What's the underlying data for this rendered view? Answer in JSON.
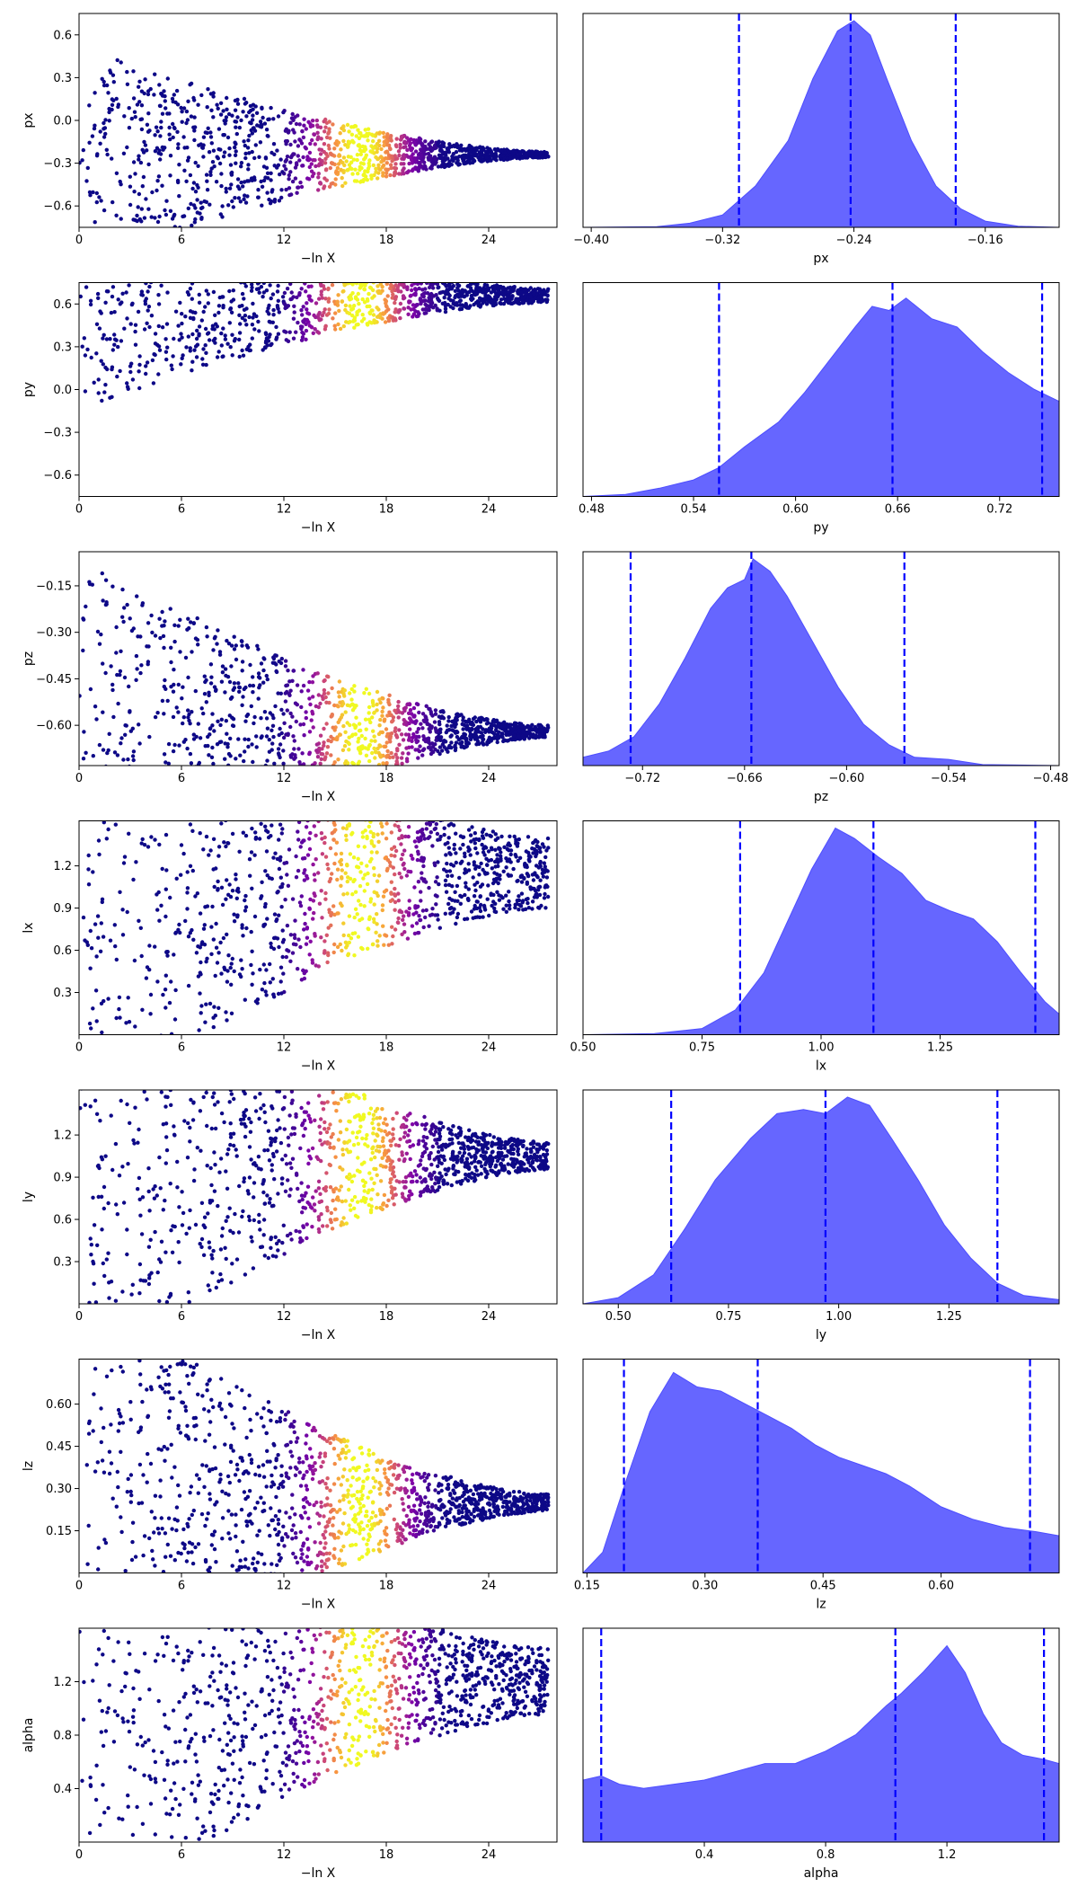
{
  "chart_data": {
    "type": "scatter",
    "description_free": true,
    "rows": [
      {
        "param": "px",
        "trace": {
          "xlabel": "−ln X",
          "ylabel": "px",
          "xlim": [
            0,
            28
          ],
          "ylim": [
            -0.75,
            0.75
          ],
          "xticks": [
            "0",
            "6",
            "12",
            "18",
            "24"
          ],
          "xtick_values": [
            0,
            6,
            12,
            18,
            24
          ],
          "yticks": [
            "0.6",
            "0.3",
            "0.0",
            "−0.3",
            "−0.6"
          ],
          "ytick_values": [
            0.6,
            0.3,
            0.0,
            -0.3,
            -0.6
          ],
          "center": -0.24,
          "initial_spread": 0.75,
          "final_spread": 0.02,
          "peak_x": 16.5
        },
        "posterior": {
          "xlabel": "px",
          "xlim": [
            -0.405,
            -0.115
          ],
          "xticks": [
            "−0.40",
            "−0.32",
            "−0.24",
            "−0.16"
          ],
          "xtick_values": [
            -0.4,
            -0.32,
            -0.24,
            -0.16
          ],
          "quantiles": [
            -0.31,
            -0.242,
            -0.178
          ],
          "density": [
            [
              -0.405,
              0
            ],
            [
              -0.36,
              0.003
            ],
            [
              -0.34,
              0.02
            ],
            [
              -0.32,
              0.06
            ],
            [
              -0.3,
              0.2
            ],
            [
              -0.28,
              0.42
            ],
            [
              -0.265,
              0.72
            ],
            [
              -0.25,
              0.95
            ],
            [
              -0.24,
              1.0
            ],
            [
              -0.23,
              0.93
            ],
            [
              -0.22,
              0.72
            ],
            [
              -0.205,
              0.42
            ],
            [
              -0.19,
              0.2
            ],
            [
              -0.175,
              0.09
            ],
            [
              -0.16,
              0.03
            ],
            [
              -0.14,
              0.005
            ],
            [
              -0.115,
              0
            ]
          ]
        }
      },
      {
        "param": "py",
        "trace": {
          "xlabel": "−ln X",
          "ylabel": "py",
          "xlim": [
            0,
            28
          ],
          "ylim": [
            -0.75,
            0.75
          ],
          "xticks": [
            "0",
            "6",
            "12",
            "18",
            "24"
          ],
          "xtick_values": [
            0,
            6,
            12,
            18,
            24
          ],
          "yticks": [
            "0.6",
            "0.3",
            "0.0",
            "−0.3",
            "−0.6"
          ],
          "ytick_values": [
            0.6,
            0.3,
            0.0,
            -0.3,
            -0.6
          ],
          "center": 0.66,
          "initial_spread": 0.75,
          "final_spread": 0.05,
          "peak_x": 16.5
        },
        "posterior": {
          "xlabel": "py",
          "xlim": [
            0.475,
            0.755
          ],
          "xticks": [
            "0.48",
            "0.54",
            "0.60",
            "0.66",
            "0.72"
          ],
          "xtick_values": [
            0.48,
            0.54,
            0.6,
            0.66,
            0.72
          ],
          "quantiles": [
            0.555,
            0.657,
            0.745
          ],
          "density": [
            [
              0.475,
              0
            ],
            [
              0.5,
              0.01
            ],
            [
              0.52,
              0.04
            ],
            [
              0.54,
              0.08
            ],
            [
              0.555,
              0.14
            ],
            [
              0.57,
              0.24
            ],
            [
              0.59,
              0.36
            ],
            [
              0.605,
              0.5
            ],
            [
              0.62,
              0.66
            ],
            [
              0.635,
              0.82
            ],
            [
              0.645,
              0.92
            ],
            [
              0.655,
              0.9
            ],
            [
              0.665,
              0.96
            ],
            [
              0.68,
              0.86
            ],
            [
              0.695,
              0.82
            ],
            [
              0.71,
              0.7
            ],
            [
              0.725,
              0.6
            ],
            [
              0.74,
              0.52
            ],
            [
              0.755,
              0.46
            ]
          ]
        }
      },
      {
        "param": "pz",
        "trace": {
          "xlabel": "−ln X",
          "ylabel": "pz",
          "xlim": [
            0,
            28
          ],
          "ylim": [
            -0.73,
            -0.04
          ],
          "xticks": [
            "0",
            "6",
            "12",
            "18",
            "24"
          ],
          "xtick_values": [
            0,
            6,
            12,
            18,
            24
          ],
          "yticks": [
            "−0.15",
            "−0.30",
            "−0.45",
            "−0.60"
          ],
          "ytick_values": [
            -0.15,
            -0.3,
            -0.45,
            -0.6
          ],
          "center": -0.62,
          "initial_spread": 0.55,
          "final_spread": 0.02,
          "peak_x": 16.5
        },
        "posterior": {
          "xlabel": "pz",
          "xlim": [
            -0.755,
            -0.475
          ],
          "xticks": [
            "−0.72",
            "−0.66",
            "−0.60",
            "−0.54",
            "−0.48"
          ],
          "xtick_values": [
            -0.72,
            -0.66,
            -0.6,
            -0.54,
            -0.48
          ],
          "quantiles": [
            -0.727,
            -0.656,
            -0.566
          ],
          "density": [
            [
              -0.755,
              0.04
            ],
            [
              -0.74,
              0.07
            ],
            [
              -0.725,
              0.14
            ],
            [
              -0.71,
              0.3
            ],
            [
              -0.695,
              0.52
            ],
            [
              -0.68,
              0.76
            ],
            [
              -0.67,
              0.86
            ],
            [
              -0.66,
              0.9
            ],
            [
              -0.655,
              1.0
            ],
            [
              -0.645,
              0.94
            ],
            [
              -0.635,
              0.82
            ],
            [
              -0.62,
              0.6
            ],
            [
              -0.605,
              0.38
            ],
            [
              -0.59,
              0.2
            ],
            [
              -0.575,
              0.1
            ],
            [
              -0.56,
              0.04
            ],
            [
              -0.54,
              0.03
            ],
            [
              -0.52,
              0.005
            ],
            [
              -0.475,
              0
            ]
          ]
        }
      },
      {
        "param": "lx",
        "trace": {
          "xlabel": "−ln X",
          "ylabel": "lx",
          "xlim": [
            0,
            28
          ],
          "ylim": [
            0.0,
            1.52
          ],
          "xticks": [
            "0",
            "6",
            "12",
            "18",
            "24"
          ],
          "xtick_values": [
            0,
            6,
            12,
            18,
            24
          ],
          "yticks": [
            "1.2",
            "0.9",
            "0.6",
            "0.3"
          ],
          "ytick_values": [
            1.2,
            0.9,
            0.6,
            0.3
          ],
          "center": 1.15,
          "initial_spread": 1.5,
          "final_spread": 0.25,
          "peak_x": 16.5
        },
        "posterior": {
          "xlabel": "lx",
          "xlim": [
            0.5,
            1.5
          ],
          "xticks": [
            "0.50",
            "0.75",
            "1.00",
            "1.25"
          ],
          "xtick_values": [
            0.5,
            0.75,
            1.0,
            1.25
          ],
          "quantiles": [
            0.83,
            1.11,
            1.45
          ],
          "density": [
            [
              0.5,
              0
            ],
            [
              0.65,
              0.005
            ],
            [
              0.75,
              0.03
            ],
            [
              0.82,
              0.12
            ],
            [
              0.88,
              0.3
            ],
            [
              0.93,
              0.55
            ],
            [
              0.98,
              0.8
            ],
            [
              1.03,
              1.0
            ],
            [
              1.07,
              0.95
            ],
            [
              1.12,
              0.86
            ],
            [
              1.17,
              0.78
            ],
            [
              1.22,
              0.65
            ],
            [
              1.27,
              0.6
            ],
            [
              1.32,
              0.56
            ],
            [
              1.37,
              0.45
            ],
            [
              1.42,
              0.3
            ],
            [
              1.47,
              0.16
            ],
            [
              1.5,
              0.1
            ]
          ]
        }
      },
      {
        "param": "ly",
        "trace": {
          "xlabel": "−ln X",
          "ylabel": "ly",
          "xlim": [
            0,
            28
          ],
          "ylim": [
            0.0,
            1.52
          ],
          "xticks": [
            "0",
            "6",
            "12",
            "18",
            "24"
          ],
          "xtick_values": [
            0,
            6,
            12,
            18,
            24
          ],
          "yticks": [
            "1.2",
            "0.9",
            "0.6",
            "0.3"
          ],
          "ytick_values": [
            1.2,
            0.9,
            0.6,
            0.3
          ],
          "center": 1.05,
          "initial_spread": 1.5,
          "final_spread": 0.1,
          "peak_x": 16.5
        },
        "posterior": {
          "xlabel": "ly",
          "xlim": [
            0.42,
            1.5
          ],
          "xticks": [
            "0.50",
            "0.75",
            "1.00",
            "1.25"
          ],
          "xtick_values": [
            0.5,
            0.75,
            1.0,
            1.25
          ],
          "quantiles": [
            0.62,
            0.97,
            1.36
          ],
          "density": [
            [
              0.42,
              0
            ],
            [
              0.5,
              0.03
            ],
            [
              0.58,
              0.14
            ],
            [
              0.65,
              0.36
            ],
            [
              0.72,
              0.6
            ],
            [
              0.8,
              0.8
            ],
            [
              0.86,
              0.92
            ],
            [
              0.92,
              0.94
            ],
            [
              0.97,
              0.92
            ],
            [
              1.02,
              1.0
            ],
            [
              1.07,
              0.96
            ],
            [
              1.12,
              0.8
            ],
            [
              1.18,
              0.6
            ],
            [
              1.24,
              0.38
            ],
            [
              1.3,
              0.22
            ],
            [
              1.36,
              0.1
            ],
            [
              1.42,
              0.04
            ],
            [
              1.5,
              0.02
            ]
          ]
        }
      },
      {
        "param": "lz",
        "trace": {
          "xlabel": "−ln X",
          "ylabel": "lz",
          "xlim": [
            0,
            28
          ],
          "ylim": [
            0.0,
            0.76
          ],
          "xticks": [
            "0",
            "6",
            "12",
            "18",
            "24"
          ],
          "xtick_values": [
            0,
            6,
            12,
            18,
            24
          ],
          "yticks": [
            "0.60",
            "0.45",
            "0.30",
            "0.15"
          ],
          "ytick_values": [
            0.6,
            0.45,
            0.3,
            0.15
          ],
          "center": 0.25,
          "initial_spread": 0.75,
          "final_spread": 0.03,
          "peak_x": 16.5
        },
        "posterior": {
          "xlabel": "lz",
          "xlim": [
            0.145,
            0.75
          ],
          "xticks": [
            "0.15",
            "0.30",
            "0.45",
            "0.60"
          ],
          "xtick_values": [
            0.15,
            0.3,
            0.45,
            0.6
          ],
          "quantiles": [
            0.197,
            0.367,
            0.713
          ],
          "density": [
            [
              0.145,
              0
            ],
            [
              0.17,
              0.1
            ],
            [
              0.2,
              0.45
            ],
            [
              0.23,
              0.78
            ],
            [
              0.26,
              0.97
            ],
            [
              0.29,
              0.9
            ],
            [
              0.32,
              0.88
            ],
            [
              0.35,
              0.82
            ],
            [
              0.38,
              0.76
            ],
            [
              0.41,
              0.7
            ],
            [
              0.44,
              0.62
            ],
            [
              0.47,
              0.56
            ],
            [
              0.5,
              0.52
            ],
            [
              0.53,
              0.48
            ],
            [
              0.56,
              0.42
            ],
            [
              0.6,
              0.32
            ],
            [
              0.64,
              0.26
            ],
            [
              0.68,
              0.22
            ],
            [
              0.72,
              0.2
            ],
            [
              0.75,
              0.18
            ]
          ]
        }
      },
      {
        "param": "alpha",
        "trace": {
          "xlabel": "−ln X",
          "ylabel": "alpha",
          "xlim": [
            0,
            28
          ],
          "ylim": [
            0.0,
            1.6
          ],
          "xticks": [
            "0",
            "6",
            "12",
            "18",
            "24"
          ],
          "xtick_values": [
            0,
            6,
            12,
            18,
            24
          ],
          "yticks": [
            "1.2",
            "0.8",
            "0.4"
          ],
          "ytick_values": [
            1.2,
            0.8,
            0.4
          ],
          "center": 1.2,
          "initial_spread": 1.6,
          "final_spread": 0.25,
          "peak_x": 16.5
        },
        "posterior": {
          "xlabel": "alpha",
          "xlim": [
            0.0,
            1.57
          ],
          "xticks": [
            "0.4",
            "0.8",
            "1.2"
          ],
          "xtick_values": [
            0.4,
            0.8,
            1.2
          ],
          "quantiles": [
            0.06,
            1.03,
            1.52
          ],
          "density": [
            [
              0.0,
              0.3
            ],
            [
              0.06,
              0.32
            ],
            [
              0.12,
              0.28
            ],
            [
              0.2,
              0.26
            ],
            [
              0.3,
              0.28
            ],
            [
              0.4,
              0.3
            ],
            [
              0.5,
              0.34
            ],
            [
              0.6,
              0.38
            ],
            [
              0.7,
              0.38
            ],
            [
              0.8,
              0.44
            ],
            [
              0.9,
              0.52
            ],
            [
              1.0,
              0.66
            ],
            [
              1.05,
              0.72
            ],
            [
              1.12,
              0.82
            ],
            [
              1.2,
              0.95
            ],
            [
              1.26,
              0.82
            ],
            [
              1.32,
              0.62
            ],
            [
              1.38,
              0.48
            ],
            [
              1.45,
              0.42
            ],
            [
              1.52,
              0.4
            ],
            [
              1.57,
              0.38
            ]
          ]
        }
      }
    ]
  }
}
